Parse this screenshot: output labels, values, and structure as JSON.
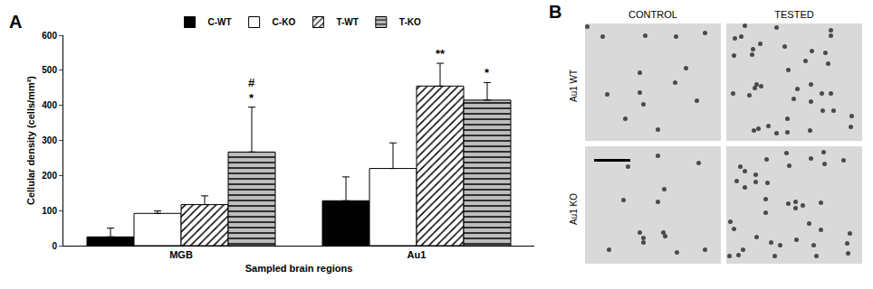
{
  "chart_data": {
    "type": "bar",
    "title": "A",
    "x_label": "Sampled brain regions",
    "y_label": "Cellular density (cells/mm²)",
    "categories": [
      "MGB",
      "Au1"
    ],
    "series": [
      {
        "name": "C-WT",
        "color": "#000000",
        "marker": "solid",
        "values": [
          25,
          128
        ],
        "errors": [
          25,
          68
        ]
      },
      {
        "name": "C-KO",
        "color": "#ffffff",
        "marker": "solid",
        "values": [
          92,
          220
        ],
        "errors": [
          7,
          73
        ]
      },
      {
        "name": "T-WT",
        "color": "#ffffff",
        "marker": "hatch_diagonal",
        "values": [
          117,
          455
        ],
        "errors": [
          25,
          65
        ]
      },
      {
        "name": "T-KO",
        "color": "#bdbdbd",
        "marker": "hatch_horizontal",
        "values": [
          267,
          415
        ],
        "errors": [
          128,
          50
        ]
      }
    ],
    "annotations": [
      {
        "category": "MGB",
        "series": "T-KO",
        "text": [
          "#",
          "*"
        ]
      },
      {
        "category": "Au1",
        "series": "T-WT",
        "text": [
          "**"
        ]
      },
      {
        "category": "Au1",
        "series": "T-KO",
        "text": [
          "*"
        ]
      }
    ],
    "ylim": [
      0,
      600
    ],
    "yticks": [
      0,
      100,
      200,
      300,
      400,
      500,
      600
    ],
    "grid": false,
    "legend": "top"
  },
  "panel_b": {
    "label": "B",
    "columns": [
      "CONTROL",
      "TESTED"
    ],
    "rows": [
      "Au1 WT",
      "Au1 KO"
    ]
  }
}
